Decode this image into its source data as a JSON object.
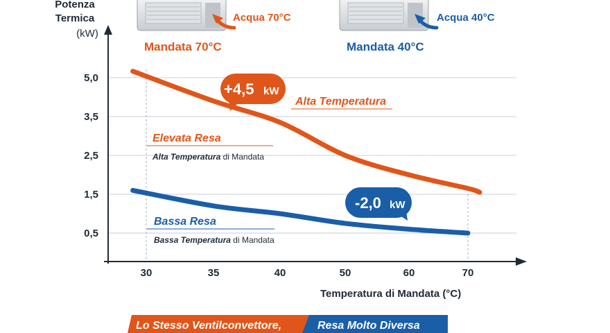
{
  "chart_data": {
    "type": "line",
    "ylabel_line1": "Potenza",
    "ylabel_line2": "Termica",
    "yunit": "(kW)",
    "xlabel": "Temperatura di Mandata (°C)",
    "x_ticks": [
      "30",
      "35",
      "40",
      "50",
      "60",
      "70"
    ],
    "y_ticks": [
      "0,5",
      "1,5",
      "2,5",
      "3,5",
      "5,0"
    ],
    "series": [
      {
        "name": "Alta Temperatura",
        "color": "#e0561a",
        "x": [
          29,
          35,
          40,
          50,
          60,
          70,
          72
        ],
        "y": [
          5.25,
          4.1,
          3.35,
          2.5,
          2.0,
          1.65,
          1.55
        ]
      },
      {
        "name": "",
        "color": "#1a5ea8",
        "x": [
          29,
          35,
          40,
          50,
          60,
          70
        ],
        "y": [
          1.6,
          1.2,
          1.0,
          0.75,
          0.6,
          0.5
        ]
      }
    ]
  },
  "units": {
    "hot": {
      "water_label": "Acqua 70°C",
      "title": "Mandata 70°C"
    },
    "cold": {
      "water_label": "Acqua 40°C",
      "title": "Mandata 40°C"
    }
  },
  "callouts": {
    "plus": {
      "value": "+4,5",
      "unit": "kW"
    },
    "minus": {
      "value": "-2,0",
      "unit": "kW"
    }
  },
  "labels": {
    "high_series": "Alta Temperatura",
    "elevata_title": "Elevata Resa",
    "elevata_bold": "Alta Temperatura",
    "elevata_rest": " di Mandata",
    "bassa_title": "Bassa Resa",
    "bassa_bold": "Bassa Temperatura",
    "bassa_rest": " di Mandata"
  },
  "banner": {
    "left": "Lo Stesso Ventilconvettore,",
    "right": "Resa Molto Diversa"
  }
}
